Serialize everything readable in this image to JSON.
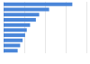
{
  "chart_data": {
    "type": "bar",
    "orientation": "horizontal",
    "categories": [
      null,
      null,
      null,
      null,
      null,
      null,
      null,
      null,
      null,
      null
    ],
    "values": [
      83,
      55,
      43,
      39,
      32,
      28,
      26,
      23,
      20,
      17
    ],
    "color": "#4a86d9",
    "xlim": [
      0,
      100
    ],
    "xticks": [
      0,
      25,
      50,
      75,
      100
    ],
    "grid": true,
    "tick_labels": false
  }
}
